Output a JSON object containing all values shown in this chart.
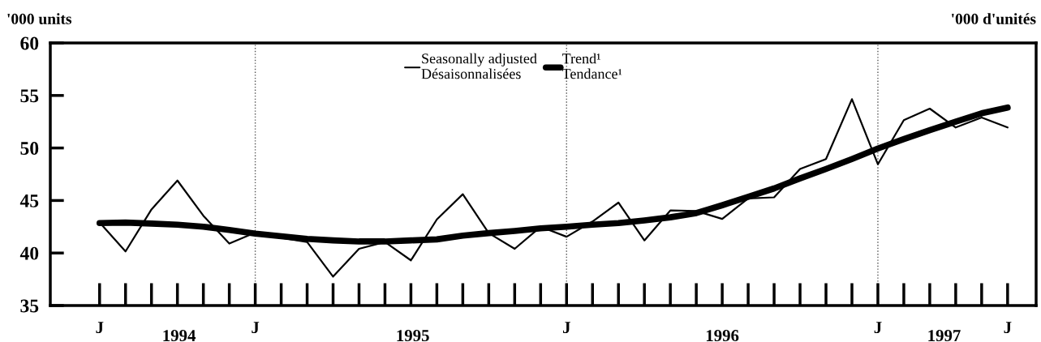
{
  "chart_data": {
    "type": "line",
    "ylabel": "'000 units",
    "annotations": [
      "1994",
      "1995",
      "1996",
      "1997",
      "'000 d'unités"
    ],
    "categories": [
      "J",
      null,
      null,
      null,
      null,
      null,
      "J",
      null,
      null,
      null,
      null,
      null,
      null,
      null,
      null,
      null,
      null,
      null,
      "J",
      null,
      null,
      null,
      null,
      null,
      null,
      null,
      null,
      null,
      null,
      null,
      "J",
      null,
      null,
      null,
      null,
      "J"
    ],
    "series": [
      {
        "name": "Seasonally adjusted\nDésaisonnalisées",
        "color": "#000000",
        "values": [
          42.9,
          40.15,
          44.15,
          46.9,
          43.55,
          40.9,
          41.95,
          41.45,
          41.05,
          37.75,
          40.4,
          41.05,
          39.3,
          43.2,
          45.6,
          41.9,
          40.4,
          42.5,
          41.55,
          43.0,
          44.8,
          41.2,
          44.05,
          44.0,
          43.25,
          45.2,
          45.3,
          48.0,
          48.95,
          54.65,
          48.45,
          52.65,
          53.75,
          51.95,
          52.9,
          51.95
        ]
      },
      {
        "name": "Trend¹\nTendance¹",
        "color": "#000000",
        "values": [
          42.85,
          42.9,
          42.8,
          42.7,
          42.5,
          42.2,
          41.85,
          41.6,
          41.35,
          41.2,
          41.1,
          41.1,
          41.2,
          41.3,
          41.65,
          41.9,
          42.1,
          42.35,
          42.5,
          42.7,
          42.85,
          43.1,
          43.4,
          43.8,
          44.55,
          45.35,
          46.15,
          47.1,
          48.0,
          48.95,
          49.95,
          50.85,
          51.7,
          52.5,
          53.3,
          53.85
        ]
      }
    ],
    "ylim": [
      35,
      60
    ],
    "yticks": [
      35,
      40,
      45,
      50,
      55,
      60
    ],
    "grid": "x",
    "legend": "top",
    "line_style": "solid",
    "marker": "none"
  }
}
